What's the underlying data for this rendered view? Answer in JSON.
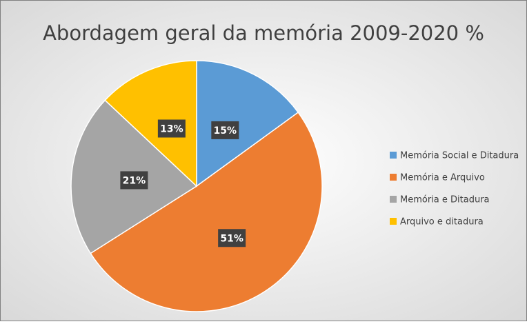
{
  "chart_data": {
    "type": "pie",
    "title": "Abordagem geral da memória 2009-2020 %",
    "categories": [
      "Memória Social e Ditadura",
      "Memória e Arquivo",
      "Memória e Ditadura",
      "Arquivo e ditadura"
    ],
    "values": [
      15,
      51,
      21,
      13
    ],
    "value_labels": [
      "15%",
      "51%",
      "21%",
      "13%"
    ],
    "colors": [
      "#5b9bd5",
      "#ed7d31",
      "#a5a5a5",
      "#ffc000"
    ],
    "legend": "right"
  }
}
